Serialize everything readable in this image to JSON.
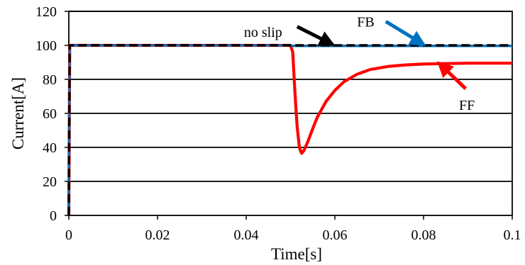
{
  "chart_data": {
    "type": "line",
    "title": "",
    "xlabel": "Time[s]",
    "ylabel": "Current[A]",
    "xlim": [
      0,
      0.1
    ],
    "ylim": [
      0,
      120
    ],
    "x_ticks": [
      0,
      0.02,
      0.04,
      0.06,
      0.08,
      0.1
    ],
    "x_tick_labels": [
      "0",
      "0.02",
      "0.04",
      "0.06",
      "0.08",
      "0.1"
    ],
    "y_ticks": [
      0,
      20,
      40,
      60,
      80,
      100,
      120
    ],
    "y_tick_labels": [
      "0",
      "20",
      "40",
      "60",
      "80",
      "100",
      "120"
    ],
    "grid": "horizontal",
    "legend": "none",
    "series": [
      {
        "name": "no slip",
        "color": "#000000",
        "line_style": "dashed",
        "points": [
          [
            0,
            0
          ],
          [
            0.0002,
            100
          ],
          [
            0.1,
            100
          ]
        ]
      },
      {
        "name": "FB",
        "color": "#0070c0",
        "line_style": "solid",
        "points": [
          [
            0,
            0
          ],
          [
            0.0002,
            100
          ],
          [
            0.05,
            100
          ],
          [
            0.0505,
            99.6
          ],
          [
            0.1,
            99.6
          ]
        ]
      },
      {
        "name": "FF",
        "color": "#ff0000",
        "line_style": "solid",
        "points": [
          [
            0,
            0
          ],
          [
            0.0002,
            100
          ],
          [
            0.05,
            100
          ],
          [
            0.0505,
            96
          ],
          [
            0.051,
            72
          ],
          [
            0.0515,
            52
          ],
          [
            0.052,
            40
          ],
          [
            0.0525,
            36.5
          ],
          [
            0.053,
            38
          ],
          [
            0.054,
            44
          ],
          [
            0.055,
            51
          ],
          [
            0.056,
            57.5
          ],
          [
            0.058,
            67
          ],
          [
            0.06,
            73.5
          ],
          [
            0.062,
            78.5
          ],
          [
            0.065,
            83
          ],
          [
            0.068,
            85.8
          ],
          [
            0.072,
            87.6
          ],
          [
            0.076,
            88.5
          ],
          [
            0.08,
            89
          ],
          [
            0.085,
            89.3
          ],
          [
            0.09,
            89.5
          ],
          [
            0.1,
            89.5
          ]
        ]
      }
    ],
    "annotations": [
      {
        "text": "no slip",
        "series": "no slip",
        "arrow_color": "#000000",
        "text_at": [
          0.0395,
          105
        ],
        "arrow_from": [
          0.0515,
          111
        ],
        "arrow_to": [
          0.0595,
          100.5
        ]
      },
      {
        "text": "FB",
        "series": "FB",
        "arrow_color": "#0070c0",
        "text_at": [
          0.065,
          111
        ],
        "arrow_from": [
          0.0715,
          114
        ],
        "arrow_to": [
          0.08,
          100.5
        ]
      },
      {
        "text": "FF",
        "series": "FF",
        "arrow_color": "#ff0000",
        "text_at": [
          0.088,
          62
        ],
        "arrow_from": [
          0.0895,
          74.5
        ],
        "arrow_to": [
          0.0835,
          89.5
        ]
      }
    ]
  }
}
